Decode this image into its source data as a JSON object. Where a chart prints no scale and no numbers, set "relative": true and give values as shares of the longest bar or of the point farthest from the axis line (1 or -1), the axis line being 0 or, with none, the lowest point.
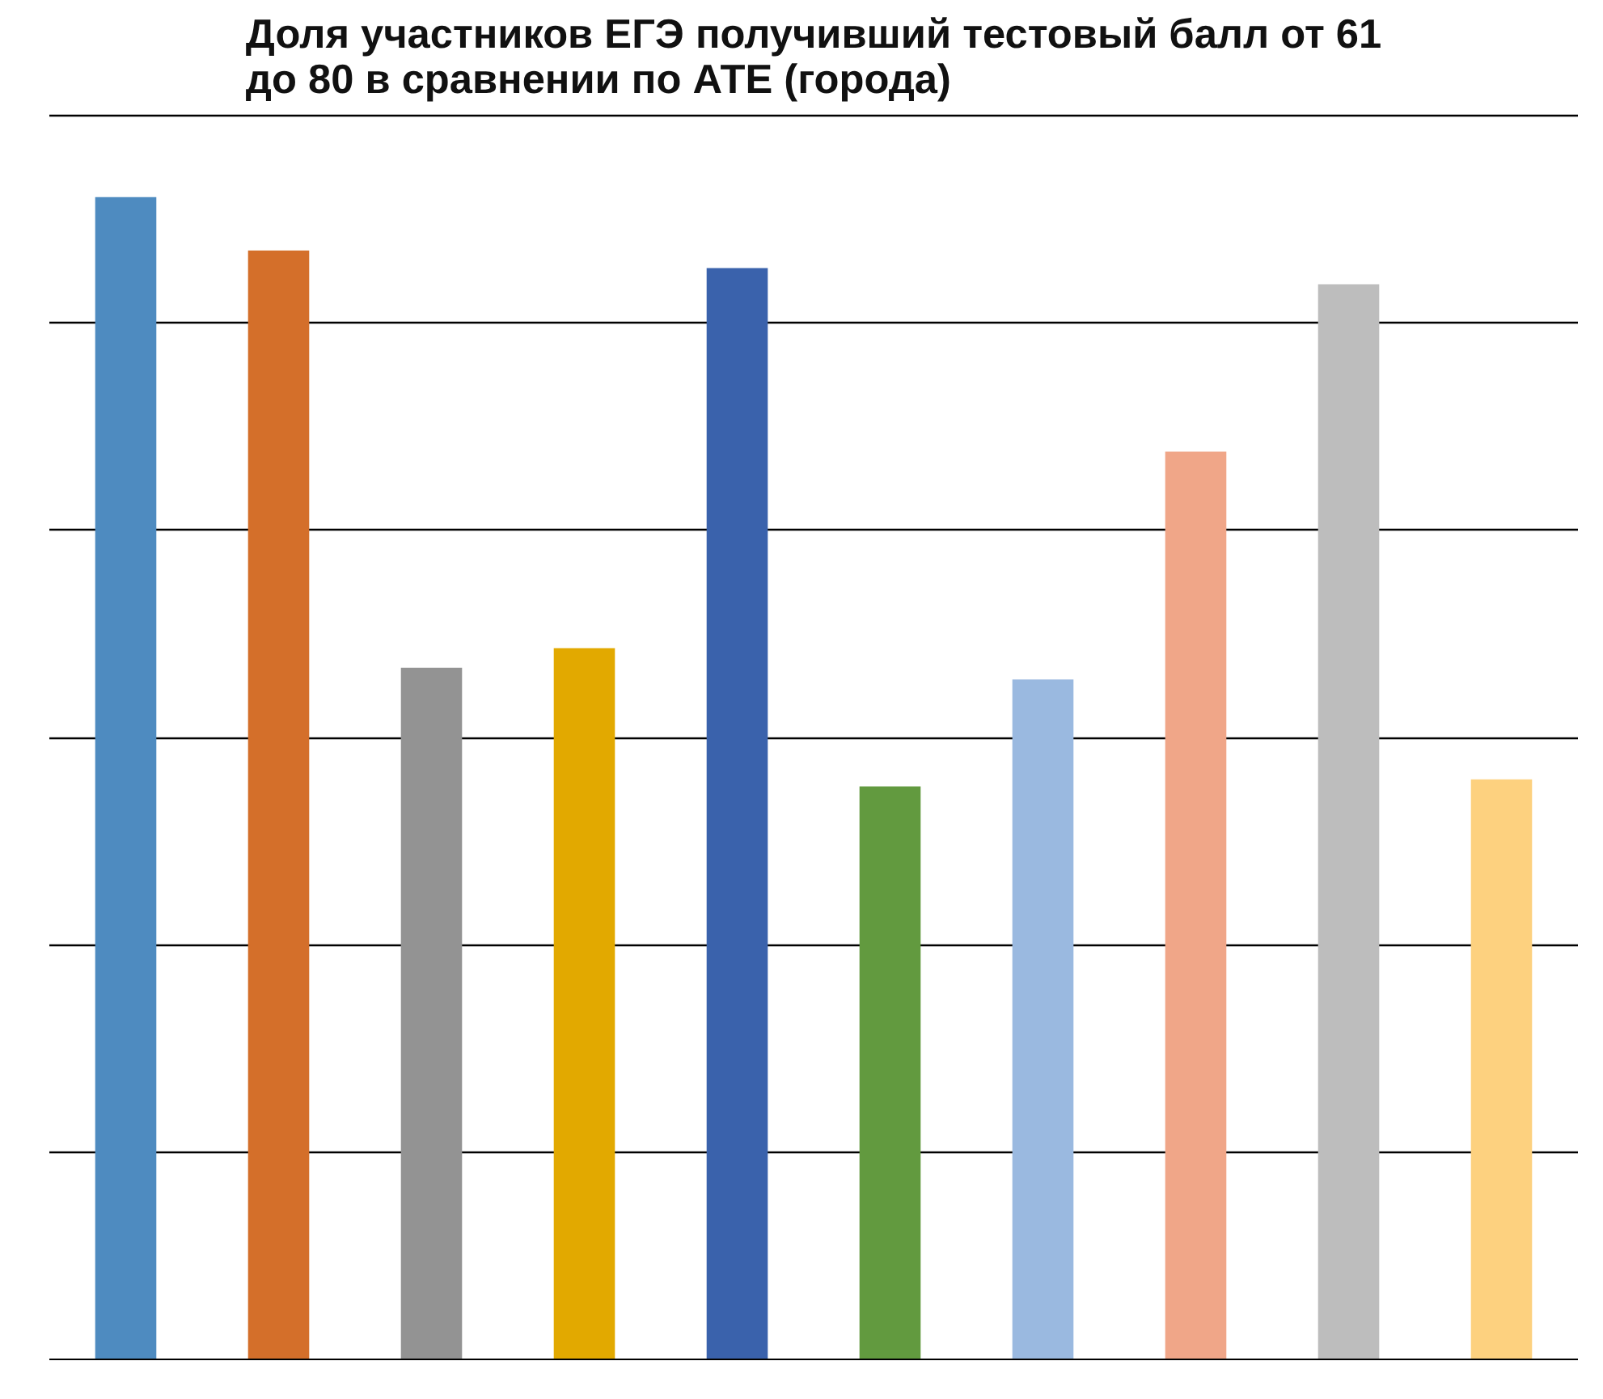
{
  "chart_data": {
    "type": "bar",
    "title": "Доля участников ЕГЭ получивший тестовый балл от 61 до 80 в сравнении по АТЕ (города)",
    "relative": true,
    "grid": "y",
    "categories": [
      null,
      null,
      null,
      null,
      null,
      null,
      null,
      null,
      null,
      null
    ],
    "values": [
      1,
      0.954,
      0.595,
      0.612,
      0.939,
      0.493,
      0.585,
      0.781,
      0.925,
      0.499
    ],
    "colors": [
      "#4e8bc0",
      "#d46f2a",
      "#939393",
      "#e2a900",
      "#3a62ac",
      "#629a3f",
      "#9ab9e0",
      "#f0a688",
      "#bdbdbd",
      "#fdd17f"
    ]
  }
}
